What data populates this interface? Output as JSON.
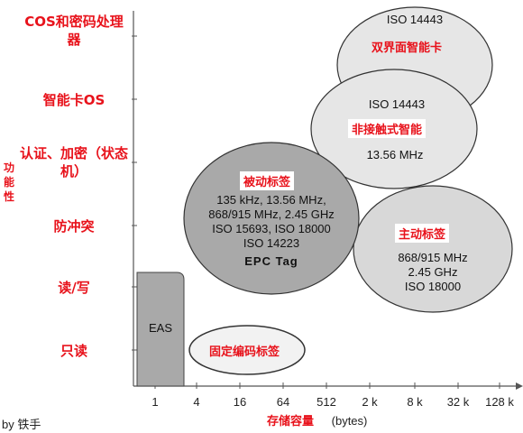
{
  "yaxis": {
    "label": "功能性",
    "levels": [
      "COS和密码处理器",
      "智能卡OS",
      "认证、加密（状态机）",
      "防冲突",
      "读/写",
      "只读"
    ]
  },
  "xaxis": {
    "label": "存储容量",
    "unit": "(bytes)",
    "ticks": [
      "1",
      "4",
      "16",
      "64",
      "512",
      "2 k",
      "8 k",
      "32 k",
      "128 k"
    ]
  },
  "regions": {
    "eas": {
      "label": "EAS"
    },
    "fixed_code": {
      "label": "固定编码标签"
    },
    "passive": {
      "label": "被动标签",
      "lines": [
        "135 kHz, 13.56 MHz,",
        "868/915 MHz, 2.45 GHz",
        "ISO 15693, ISO 18000",
        "ISO 14223"
      ],
      "sub": "EPC Tag"
    },
    "active": {
      "label": "主动标签",
      "lines": [
        "868/915 MHz",
        "2.45 GHz",
        "ISO 18000"
      ]
    },
    "contactless": {
      "label": "非接触式智能",
      "lines": [
        "ISO 14443",
        "13.56 MHz"
      ]
    },
    "dual": {
      "label": "双界面智能卡",
      "lines": [
        "ISO 14443"
      ]
    }
  },
  "credit": "by 铁手",
  "colors": {
    "accent": "#e8121b",
    "fill_light": "#e6e6e6",
    "fill_dark": "#a9a9a9"
  }
}
